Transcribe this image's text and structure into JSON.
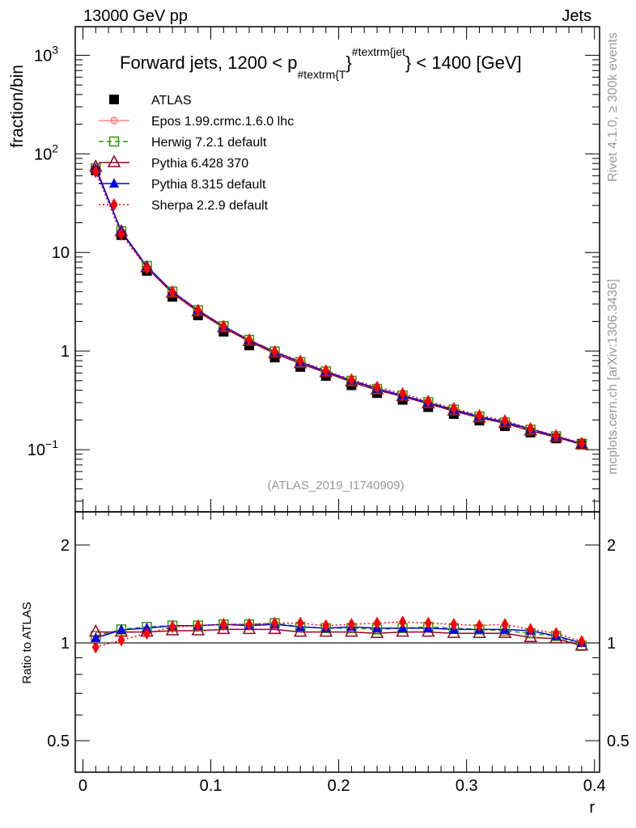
{
  "header": {
    "left": "13000 GeV pp",
    "right": "Jets"
  },
  "side_text": {
    "rivet": "Rivet 4.1.0, ≥ 300k events",
    "mcplots": "mcplots.cern.ch [arXiv:1306.3436]"
  },
  "analysis_id": "(ATLAS_2019_I1740909)",
  "colors": {
    "ATLAS": "#000000",
    "Epos": "#ff8080",
    "Herwig": "#339900",
    "Pythia6": "#990022",
    "Pythia8": "#0000ee",
    "Sherpa": "#ff0000"
  },
  "chart_data": {
    "type": "line",
    "title": {
      "main": "Forward jets, 1200 < p",
      "sub": "#textrm{T",
      "mid": "}",
      "sup": "#textrm{jet",
      "end": "} < 1400 [GeV]"
    },
    "xlabel": "r",
    "ylabel": "fraction/bin",
    "ratio_ylabel": "Ratio to ATLAS",
    "xlim": [
      -0.006,
      0.404
    ],
    "ylim": [
      0.0234,
      1950
    ],
    "yscale": "log",
    "ratio_ylim": [
      0.4,
      2.53
    ],
    "ratio_yscale": "log",
    "x_ticks": [
      "0",
      "0.1",
      "0.2",
      "0.3",
      "0.4"
    ],
    "x_tick_values": [
      0,
      0.1,
      0.2,
      0.3,
      0.4
    ],
    "y_ticks": [
      {
        "base": "10",
        "exp": "3",
        "v": 1000
      },
      {
        "base": "10",
        "exp": "2",
        "v": 100
      },
      {
        "base": "10",
        "exp": "",
        "v": 10
      },
      {
        "base": "1",
        "exp": "",
        "v": 1
      },
      {
        "base": "10",
        "exp": "−1",
        "v": 0.1
      }
    ],
    "ratio_ticks": [
      {
        "label": "2",
        "v": 2
      },
      {
        "label": "1",
        "v": 1
      },
      {
        "label": "0.5",
        "v": 0.5
      }
    ],
    "legend_placement": "top-left",
    "x": [
      0.01,
      0.03,
      0.05,
      0.07,
      0.09,
      0.11,
      0.13,
      0.15,
      0.17,
      0.19,
      0.21,
      0.23,
      0.25,
      0.27,
      0.29,
      0.31,
      0.33,
      0.35,
      0.37,
      0.39
    ],
    "data": {
      "name": "ATLAS",
      "values": [
        68,
        15,
        6.5,
        3.55,
        2.3,
        1.57,
        1.14,
        0.86,
        0.69,
        0.56,
        0.45,
        0.375,
        0.32,
        0.27,
        0.23,
        0.197,
        0.173,
        0.149,
        0.13,
        0.115
      ]
    },
    "series": [
      {
        "name": "Epos 1.99.crmc.1.6.0 lhc",
        "key": "Epos",
        "ratio": []
      },
      {
        "name": "Herwig 7.2.1 default",
        "key": "Herwig",
        "ratio": [
          1.05,
          1.1,
          1.12,
          1.13,
          1.13,
          1.14,
          1.14,
          1.15,
          1.12,
          1.11,
          1.11,
          1.1,
          1.11,
          1.12,
          1.11,
          1.1,
          1.09,
          1.07,
          1.05,
          0.98
        ]
      },
      {
        "name": "Pythia 6.428 370",
        "key": "Pythia6",
        "ratio": [
          1.08,
          1.08,
          1.08,
          1.09,
          1.09,
          1.1,
          1.1,
          1.1,
          1.08,
          1.08,
          1.08,
          1.07,
          1.08,
          1.08,
          1.07,
          1.07,
          1.07,
          1.04,
          1.03,
          0.98
        ]
      },
      {
        "name": "Pythia 8.315 default",
        "key": "Pythia8",
        "ratio": [
          1.035,
          1.096,
          1.11,
          1.13,
          1.13,
          1.14,
          1.13,
          1.14,
          1.12,
          1.11,
          1.12,
          1.11,
          1.11,
          1.11,
          1.1,
          1.1,
          1.1,
          1.09,
          1.05,
          1.0
        ]
      },
      {
        "name": "Sherpa 2.2.9 default",
        "key": "Sherpa",
        "ratio": [
          0.97,
          1.02,
          1.07,
          1.12,
          1.13,
          1.14,
          1.14,
          1.15,
          1.15,
          1.13,
          1.14,
          1.15,
          1.16,
          1.15,
          1.14,
          1.13,
          1.14,
          1.1,
          1.07,
          1.01
        ]
      }
    ]
  }
}
